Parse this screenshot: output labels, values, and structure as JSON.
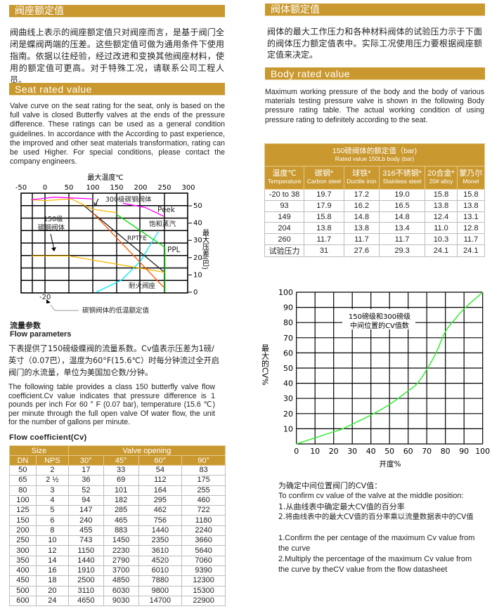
{
  "seat_cn": {
    "title": "阀座额定值",
    "text": "阀曲线上表示的阀座额定值只对阀座而言，是基于阀门全闭是蝶阀两端的压差。这些额定值可做为通用条件下使用指南。依据以往经验，经过改进和变换其他阀座材料，使用的额定值可更高。对于特殊工况，请联系公司工程人员。"
  },
  "seat_en": {
    "title": "Seat rated value",
    "text": "Valve curve on the seat rating for the seat, only is based on the full valve is closed Butterfly valves at the ends of the pressure difference. These ratings can be used as a general condition guidelines. In accordance with the According to past experience, the improved and other seat materials transformation, rating can be used Higher. For special conditions, please contact the company engineers."
  },
  "body_cn": {
    "title": "阀体额定值",
    "text": "阀体的最大工作压力和各种材料阀体的试验压力示于下面的阀体压力额定值表中。实际工况使用压力要根据阀座额定值来决定。"
  },
  "body_en": {
    "title": "Body rated value",
    "text": "Maximum working pressure of the body and the body of various materials testing pressure valve is shown in the following Body pressure rating table. The actual working condition of using pressure rating to definitely according to the seat."
  },
  "flow": {
    "title_cn": "流量参数",
    "title_en": "Flow parameters",
    "text_cn": "下表提供了150磅级蝶阀的流量系数。Cv值表示压差为1磅/英寸（0.07巴），温度为60°F(15.6℃）时每分钟流过全开启阀门的水流量，单位为美国加仑数/分钟。",
    "text_en": "The following table provides a class 150 butterfly valve flow coefficient.Cv value indicates that pressure difference is 1 pounds per inch For 60 ° F (0.07 bar), temperature (15.6 ℃) per minute through the full open valve Of water flow, the unit for the number of gallons per minute.",
    "table_title": "Flow coefficient(Cv)"
  },
  "flow_table": {
    "group_headers": [
      "Size",
      "Valve opening"
    ],
    "headers": [
      "DN",
      "NPS",
      "30°",
      "45°",
      "60°",
      "90°"
    ],
    "rows": [
      [
        "50",
        "2",
        "17",
        "33",
        "54",
        "83"
      ],
      [
        "65",
        "2 ½",
        "36",
        "69",
        "112",
        "175"
      ],
      [
        "80",
        "3",
        "52",
        "101",
        "164",
        "255"
      ],
      [
        "100",
        "4",
        "94",
        "182",
        "295",
        "460"
      ],
      [
        "125",
        "5",
        "147",
        "285",
        "462",
        "722"
      ],
      [
        "150",
        "6",
        "240",
        "465",
        "756",
        "1180"
      ],
      [
        "200",
        "8",
        "455",
        "883",
        "1440",
        "2240"
      ],
      [
        "250",
        "10",
        "743",
        "1450",
        "2350",
        "3660"
      ],
      [
        "300",
        "12",
        "1150",
        "2230",
        "3610",
        "5640"
      ],
      [
        "350",
        "14",
        "1440",
        "2790",
        "4520",
        "7060"
      ],
      [
        "400",
        "16",
        "1910",
        "3700",
        "6010",
        "9390"
      ],
      [
        "450",
        "18",
        "2500",
        "4850",
        "7880",
        "12300"
      ],
      [
        "500",
        "20",
        "3110",
        "6030",
        "9800",
        "15300"
      ],
      [
        "600",
        "24",
        "4650",
        "9030",
        "14700",
        "22900"
      ]
    ]
  },
  "body_table": {
    "title_cn": "150磅阀体的额定值（bar)",
    "title_en": "Rated value 150Lb body (bar)",
    "headers": [
      {
        "cn": "温度℃",
        "en": "Temperature"
      },
      {
        "cn": "碳钢*",
        "en": "Carbon steel"
      },
      {
        "cn": "球铁*",
        "en": "Ductile iron"
      },
      {
        "cn": "316不锈钢*",
        "en": "Stainless steel"
      },
      {
        "cn": "20合金*",
        "en": "20# alloy"
      },
      {
        "cn": "蒙乃尔",
        "en": "Monel"
      }
    ],
    "rows": [
      [
        "-20 to 38",
        "19.7",
        "17.2",
        "19.0",
        "15.8",
        "15.8"
      ],
      [
        "93",
        "17.9",
        "16.2",
        "16.5",
        "13.8",
        "13.8"
      ],
      [
        "149",
        "15.8",
        "14.8",
        "14.8",
        "12.4",
        "13.1"
      ],
      [
        "204",
        "13.8",
        "13.8",
        "13.4",
        "11.0",
        "12.8"
      ],
      [
        "260",
        "11.7",
        "11.7",
        "11.7",
        "10.3",
        "11.7"
      ],
      [
        "试验压力",
        "31",
        "27.6",
        "29.3",
        "24.1",
        "24.1"
      ]
    ]
  },
  "cv_notes": {
    "l1": "为确定中间位置阀门的CV值：",
    "l2": "To confirm cv value of the valve at the middle position:",
    "l3": "1.从曲线表中确定最大CV值的百分率",
    "l4": "2.将曲线表中的最大CV值的百分率乘以流量数据表中的CV值",
    "l5": "1.Confirm the per centage of the maximum Cv value from the curve",
    "l6": "2.Multiply the percentage of the maximum Cv value from the curve by theCV value from the flow datasheet"
  },
  "colors": {
    "accent": "#c9982f"
  },
  "chart_data": [
    {
      "type": "line",
      "xlabel": "最大温度℃",
      "ylabel": "最大压差(巴)",
      "xlim": [
        -50,
        300
      ],
      "ylim": [
        0,
        55
      ],
      "grid": true,
      "x_ticks": [
        "-50",
        "0",
        "50",
        "100",
        "150",
        "200",
        "250",
        "300"
      ],
      "y_ticks": [
        "50",
        "40",
        "30",
        "20",
        "10",
        "0"
      ],
      "annotations": {
        "low_temp_tick": "-20",
        "low_temp_note": "碳钢阀体的低温额定值"
      },
      "series": [
        {
          "name": "300级碳钢阀体",
          "color": "#f5b800",
          "points": [
            [
              -29,
              53.5
            ],
            [
              0,
              53
            ],
            [
              55,
              54
            ],
            [
              100,
              48
            ],
            [
              150,
              46
            ]
          ]
        },
        {
          "name": "Peek",
          "color": "#ff00ff",
          "points": [
            [
              -29,
              53.5
            ],
            [
              20,
              55
            ],
            [
              100,
              54
            ],
            null,
            [
              163,
              51.5
            ],
            [
              210,
              49
            ],
            [
              248,
              44
            ]
          ]
        },
        {
          "name": "饱和蒸汽",
          "color": "#00e5ff",
          "points": [
            [
              107,
              0
            ],
            [
              160,
              7
            ],
            [
              200,
              18
            ],
            [
              237,
              35
            ]
          ]
        },
        {
          "name": "150级碳钢阀体",
          "color": "#f5b800",
          "points": [
            [
              -29,
              21
            ],
            [
              50,
              21
            ],
            [
              250,
              11.5
            ]
          ]
        },
        {
          "name": "RPTFE",
          "color": "#222222",
          "points": [
            [
              82,
              50
            ],
            [
              248,
              12
            ]
          ]
        },
        {
          "name": "PPL",
          "color": "#00dd00",
          "points": [
            [
              150,
              45
            ],
            [
              251,
              26
            ],
            [
              251,
              0
            ]
          ]
        },
        {
          "name": "耐火阀座",
          "color": "#ff5500",
          "points": [
            [
              100,
              46
            ],
            [
              248,
              3
            ]
          ]
        }
      ]
    },
    {
      "type": "line",
      "xlabel": "开度%",
      "ylabel": "最大的CV%",
      "xlim": [
        0,
        100
      ],
      "ylim": [
        0,
        100
      ],
      "grid": true,
      "x_ticks": [
        "0",
        "10",
        "20",
        "30",
        "40",
        "50",
        "60",
        "70",
        "80",
        "90",
        "100"
      ],
      "y_ticks": [
        "10",
        "20",
        "30",
        "40",
        "50",
        "60",
        "70",
        "80",
        "90",
        "100"
      ],
      "annotation": [
        "150磅级和300磅级",
        "中间位置的CV值数"
      ],
      "series": [
        {
          "color": "#33ee33",
          "points": [
            [
              0,
              0
            ],
            [
              10,
              4
            ],
            [
              20,
              8
            ],
            [
              25,
              10
            ],
            [
              30,
              13
            ],
            [
              40,
              19
            ],
            [
              50,
              26
            ],
            [
              60,
              35
            ],
            [
              65,
              40
            ],
            [
              70,
              49
            ],
            [
              75,
              60
            ],
            [
              80,
              74
            ],
            [
              85,
              82
            ],
            [
              90,
              89
            ],
            [
              100,
              100
            ]
          ]
        }
      ]
    }
  ]
}
